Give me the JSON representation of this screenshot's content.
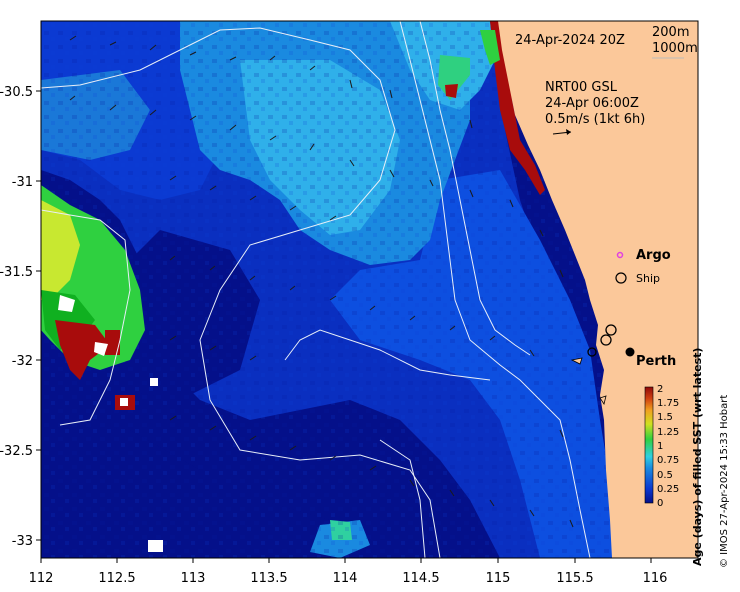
{
  "map": {
    "title_date": "24-Apr-2024 20Z",
    "product": "NRT00 GSL",
    "product_time": "24-Apr 06:00Z",
    "vector_scale": "0.5m/s (1kt 6h)",
    "contour_labels": [
      "200m",
      "1000m"
    ],
    "legend": {
      "argo_label": "Argo",
      "ship_label": "Ship",
      "argo_color": "#e040e0"
    },
    "city": "Perth",
    "colorbar": {
      "title": "Age (days) of filled SST (wrt latest)",
      "ticks": [
        "2",
        "1.75",
        "1.5",
        "1.25",
        "1",
        "0.75",
        "0.5",
        "0.25",
        "0"
      ]
    },
    "x_ticks": [
      "112",
      "112.5",
      "113",
      "113.5",
      "114",
      "114.5",
      "115",
      "115.5",
      "116"
    ],
    "y_ticks": [
      "-30.5",
      "-31",
      "-31.5",
      "-32",
      "-32.5",
      "-33"
    ],
    "credit": "© IMOS 27-Apr-2024 15:33 Hobart",
    "colors": {
      "land": "#fbc89a",
      "deep": "#04108a",
      "mid": "#0a36cf",
      "light": "#1a8ae0",
      "cyan": "#2fb0ea",
      "green": "#2fd040",
      "red": "#a80c0c"
    }
  }
}
